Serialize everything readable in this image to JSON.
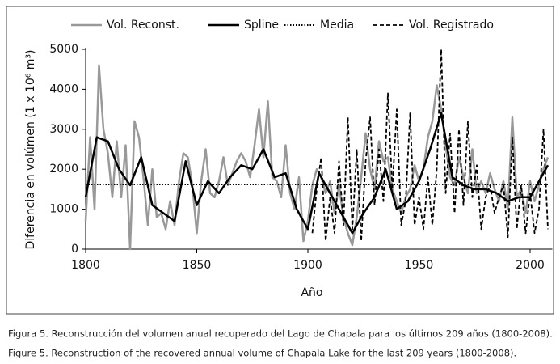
{
  "chart_data": {
    "type": "line",
    "xlabel": "Año",
    "ylabel": "Diferencia en volúmen (1 x 10⁶ m³)",
    "xlim": [
      1800,
      2010
    ],
    "xticks": [
      1800,
      1850,
      1900,
      1950,
      2000
    ],
    "ylim": [
      0,
      5000
    ],
    "yticks": [
      0,
      1000,
      2000,
      3000,
      4000,
      5000
    ],
    "series": [
      {
        "name": "Vol. Reconst.",
        "color": "#999999",
        "style": "solid",
        "x": [
          1800,
          1802,
          1804,
          1806,
          1808,
          1810,
          1812,
          1814,
          1816,
          1818,
          1820,
          1822,
          1824,
          1826,
          1828,
          1830,
          1832,
          1834,
          1836,
          1838,
          1840,
          1842,
          1844,
          1846,
          1848,
          1850,
          1852,
          1854,
          1856,
          1858,
          1860,
          1862,
          1864,
          1866,
          1868,
          1870,
          1872,
          1874,
          1876,
          1878,
          1880,
          1882,
          1884,
          1886,
          1888,
          1890,
          1892,
          1894,
          1896,
          1898,
          1900,
          1902,
          1904,
          1906,
          1908,
          1910,
          1912,
          1914,
          1916,
          1918,
          1920,
          1922,
          1924,
          1926,
          1928,
          1930,
          1932,
          1934,
          1936,
          1938,
          1940,
          1942,
          1944,
          1946,
          1948,
          1950,
          1952,
          1954,
          1956,
          1958,
          1960,
          1962,
          1964,
          1966,
          1968,
          1970,
          1972,
          1974,
          1976,
          1978,
          1980,
          1982,
          1984,
          1986,
          1988,
          1990,
          1992,
          1994,
          1996,
          1998,
          2000,
          2002,
          2004,
          2006,
          2008
        ],
        "values": [
          700,
          2800,
          1000,
          4600,
          3000,
          2400,
          1300,
          2700,
          1300,
          2600,
          0,
          3200,
          2800,
          1800,
          600,
          2000,
          800,
          900,
          500,
          1200,
          600,
          1700,
          2400,
          2300,
          1600,
          400,
          1700,
          2500,
          1400,
          1300,
          1700,
          2300,
          1600,
          1900,
          2200,
          2400,
          2200,
          1800,
          2600,
          3500,
          2300,
          3700,
          1800,
          1700,
          1300,
          2600,
          1400,
          1000,
          1800,
          200,
          700,
          1600,
          2000,
          1800,
          1400,
          1700,
          900,
          1600,
          800,
          400,
          100,
          800,
          1800,
          2900,
          2000,
          1500,
          2700,
          2200,
          2300,
          1500,
          1200,
          900,
          1300,
          1500,
          2100,
          1700,
          2000,
          2800,
          3200,
          4100,
          3500,
          2600,
          1800,
          1600,
          2300,
          1800,
          1400,
          2500,
          1400,
          1700,
          1400,
          1900,
          1500,
          1200,
          1700,
          1000,
          3300,
          1300,
          1500,
          900,
          1700,
          1200,
          1600,
          2000,
          2300
        ]
      },
      {
        "name": "Spline",
        "color": "#000000",
        "style": "solid",
        "x": [
          1800,
          1805,
          1810,
          1815,
          1820,
          1825,
          1830,
          1835,
          1840,
          1845,
          1850,
          1855,
          1860,
          1865,
          1870,
          1875,
          1880,
          1885,
          1890,
          1895,
          1900,
          1905,
          1910,
          1915,
          1920,
          1925,
          1930,
          1935,
          1940,
          1945,
          1950,
          1955,
          1960,
          1965,
          1970,
          1975,
          1980,
          1985,
          1990,
          1995,
          2000,
          2005,
          2008
        ],
        "values": [
          1300,
          2800,
          2700,
          2000,
          1600,
          2300,
          1100,
          900,
          700,
          2200,
          1100,
          1700,
          1400,
          1800,
          2100,
          2000,
          2500,
          1800,
          1900,
          1000,
          500,
          1900,
          1400,
          900,
          400,
          900,
          1300,
          2000,
          1000,
          1200,
          1700,
          2500,
          3400,
          1800,
          1600,
          1500,
          1500,
          1400,
          1200,
          1300,
          1300,
          1800,
          2100
        ]
      },
      {
        "name": "Media",
        "color": "#000000",
        "style": "dotted",
        "x": [
          1800,
          2008
        ],
        "values": [
          1620,
          1620
        ]
      },
      {
        "name": "Vol. Registrado",
        "color": "#000000",
        "style": "dashed",
        "x": [
          1902,
          1904,
          1906,
          1908,
          1910,
          1912,
          1914,
          1916,
          1918,
          1920,
          1922,
          1924,
          1926,
          1928,
          1930,
          1932,
          1934,
          1936,
          1938,
          1940,
          1942,
          1944,
          1946,
          1948,
          1950,
          1952,
          1954,
          1956,
          1958,
          1960,
          1962,
          1964,
          1966,
          1968,
          1970,
          1972,
          1974,
          1976,
          1978,
          1980,
          1982,
          1984,
          1986,
          1988,
          1990,
          1992,
          1994,
          1996,
          1998,
          2000,
          2002,
          2004,
          2006,
          2008
        ],
        "values": [
          400,
          1500,
          2300,
          200,
          1300,
          400,
          2200,
          600,
          3300,
          500,
          2500,
          200,
          2200,
          3300,
          1100,
          2500,
          1200,
          3900,
          1500,
          3500,
          600,
          1200,
          3400,
          600,
          1300,
          500,
          1800,
          600,
          2000,
          5000,
          1400,
          2900,
          900,
          3000,
          1100,
          3200,
          1300,
          2100,
          500,
          1300,
          1600,
          900,
          1300,
          1600,
          300,
          2800,
          500,
          1600,
          400,
          1400,
          400,
          1000,
          3000,
          500
        ]
      }
    ]
  },
  "caption": [
    "Figura 5. Reconstrucción del volumen anual recuperado del Lago de Chapala para los últimos 209 años (1800-2008).",
    "Figure 5. Reconstruction of the recovered annual volume of Chapala Lake for the last 209 years (1800-2008)."
  ]
}
